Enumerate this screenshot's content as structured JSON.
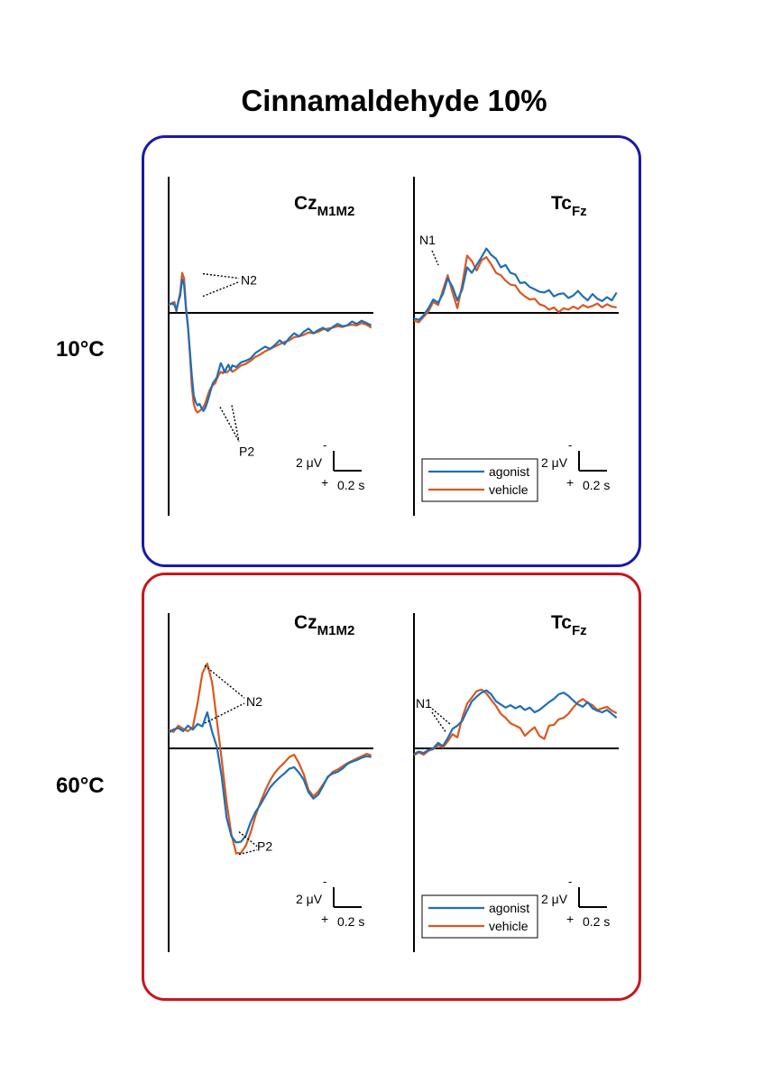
{
  "figure_title": "Cinnamaldehyde 10%",
  "colors": {
    "agonist": "#1f6fb5",
    "vehicle": "#d9581f",
    "cold_frame": "#1a1aa8",
    "hot_frame": "#c8161d"
  },
  "rows": [
    {
      "label": "10°C"
    },
    {
      "label": "60°C"
    }
  ],
  "scale_bar": {
    "amplitude_label": "2 μV",
    "time_label": "0.2 s",
    "neg_sign": "-",
    "pos_sign": "+"
  },
  "legend": {
    "agonist": "agonist",
    "vehicle": "vehicle"
  },
  "chart_data": [
    {
      "type": "line",
      "row": "10°C",
      "channel": "Cz",
      "channel_sub": "M1M2",
      "x_unit": "s",
      "y_unit": "μV (negative up)",
      "annotations": [
        "N2",
        "P2"
      ],
      "series": [
        {
          "name": "agonist",
          "x": [
            0.0,
            0.02,
            0.04,
            0.06,
            0.08,
            0.1,
            0.12,
            0.14,
            0.16,
            0.18,
            0.2,
            0.22,
            0.24,
            0.26,
            0.28,
            0.3,
            0.32,
            0.34,
            0.36,
            0.38,
            0.4,
            0.42,
            0.44,
            0.46,
            0.48,
            0.5,
            0.52,
            0.54,
            0.56,
            0.58,
            0.6,
            0.62,
            0.64,
            0.66,
            0.7,
            0.75,
            0.8,
            0.85,
            0.9,
            0.95,
            1.0,
            1.05,
            1.1,
            1.15,
            1.2,
            1.25,
            1.3,
            1.35,
            1.4,
            1.45,
            1.5,
            1.55,
            1.6,
            1.65,
            1.7,
            1.75,
            1.8,
            1.85,
            1.9,
            1.95,
            2.0,
            2.05,
            2.1
          ],
          "y": [
            -1.2,
            -1.1,
            -1.3,
            -1.0,
            -0.3,
            -1.4,
            -2.2,
            -4.3,
            -3.6,
            -0.4,
            1.8,
            4.8,
            8.0,
            10.5,
            11.4,
            11.8,
            11.6,
            12.1,
            12.5,
            12.1,
            11.4,
            10.6,
            9.7,
            8.9,
            8.6,
            8.2,
            7.3,
            6.4,
            6.9,
            7.6,
            7.0,
            6.6,
            7.3,
            6.7,
            6.9,
            6.3,
            6.1,
            5.8,
            5.1,
            4.7,
            4.3,
            4.6,
            4.1,
            3.5,
            4.0,
            3.2,
            2.6,
            3.0,
            2.4,
            2.0,
            2.6,
            2.2,
            1.9,
            2.3,
            1.8,
            1.4,
            1.7,
            1.6,
            1.1,
            1.4,
            1.0,
            1.3,
            1.6
          ]
        },
        {
          "name": "vehicle",
          "x": [
            0.0,
            0.02,
            0.04,
            0.06,
            0.08,
            0.1,
            0.12,
            0.14,
            0.16,
            0.18,
            0.2,
            0.22,
            0.24,
            0.26,
            0.28,
            0.3,
            0.32,
            0.34,
            0.36,
            0.38,
            0.4,
            0.42,
            0.44,
            0.46,
            0.48,
            0.5,
            0.52,
            0.54,
            0.56,
            0.58,
            0.6,
            0.62,
            0.64,
            0.66,
            0.7,
            0.75,
            0.8,
            0.85,
            0.9,
            0.95,
            1.0,
            1.05,
            1.1,
            1.15,
            1.2,
            1.25,
            1.3,
            1.35,
            1.4,
            1.45,
            1.5,
            1.55,
            1.6,
            1.65,
            1.7,
            1.75,
            1.8,
            1.85,
            1.9,
            1.95,
            2.0,
            2.05,
            2.1
          ],
          "y": [
            -1.0,
            -1.2,
            -1.1,
            -1.4,
            -0.2,
            -1.5,
            -2.6,
            -5.1,
            -4.4,
            -0.7,
            1.6,
            5.2,
            9.4,
            11.6,
            12.4,
            12.7,
            12.5,
            12.3,
            12.0,
            11.5,
            10.7,
            10.0,
            9.5,
            9.2,
            9.0,
            8.4,
            7.9,
            7.5,
            7.7,
            7.3,
            7.6,
            7.4,
            7.1,
            7.5,
            7.2,
            6.7,
            6.5,
            6.1,
            5.6,
            5.3,
            4.9,
            4.6,
            4.3,
            4.0,
            3.7,
            3.5,
            3.1,
            3.0,
            2.8,
            2.5,
            2.6,
            2.4,
            2.1,
            2.0,
            1.9,
            1.7,
            1.8,
            1.6,
            1.5,
            1.6,
            1.3,
            1.5,
            1.9
          ]
        }
      ]
    },
    {
      "type": "line",
      "row": "10°C",
      "channel": "Tc",
      "channel_sub": "Fz",
      "x_unit": "s",
      "y_unit": "μV (negative up)",
      "annotations": [
        "N1"
      ],
      "series": [
        {
          "name": "agonist",
          "x": [
            0.0,
            0.05,
            0.1,
            0.15,
            0.2,
            0.25,
            0.3,
            0.35,
            0.4,
            0.45,
            0.5,
            0.55,
            0.6,
            0.65,
            0.7,
            0.75,
            0.8,
            0.85,
            0.9,
            0.95,
            1.0,
            1.05,
            1.1,
            1.15,
            1.2,
            1.25,
            1.3,
            1.35,
            1.4,
            1.45,
            1.5,
            1.55,
            1.6,
            1.65,
            1.7,
            1.75,
            1.8,
            1.85,
            1.9,
            1.95,
            2.0,
            2.05,
            2.1
          ],
          "y": [
            0.7,
            0.9,
            0.3,
            -0.6,
            -1.7,
            -1.3,
            -2.4,
            -4.4,
            -3.3,
            -1.6,
            -3.0,
            -5.8,
            -5.1,
            -6.1,
            -7.1,
            -8.2,
            -7.4,
            -6.9,
            -5.8,
            -6.1,
            -5.1,
            -4.9,
            -3.8,
            -3.9,
            -3.3,
            -3.0,
            -2.7,
            -2.6,
            -2.9,
            -2.1,
            -2.4,
            -2.5,
            -1.9,
            -2.2,
            -2.8,
            -2.1,
            -1.6,
            -2.4,
            -1.8,
            -1.5,
            -2.0,
            -1.6,
            -2.6
          ]
        },
        {
          "name": "vehicle",
          "x": [
            0.0,
            0.05,
            0.1,
            0.15,
            0.2,
            0.25,
            0.3,
            0.35,
            0.4,
            0.45,
            0.5,
            0.55,
            0.6,
            0.65,
            0.7,
            0.75,
            0.8,
            0.85,
            0.9,
            0.95,
            1.0,
            1.05,
            1.1,
            1.15,
            1.2,
            1.25,
            1.3,
            1.35,
            1.4,
            1.45,
            1.5,
            1.55,
            1.6,
            1.65,
            1.7,
            1.75,
            1.8,
            1.85,
            1.9,
            1.95,
            2.0,
            2.05,
            2.1
          ],
          "y": [
            1.0,
            1.2,
            0.5,
            -0.2,
            -1.4,
            -1.0,
            -2.9,
            -4.8,
            -2.6,
            -0.6,
            -3.6,
            -7.3,
            -6.6,
            -5.4,
            -6.7,
            -7.1,
            -6.2,
            -5.1,
            -4.8,
            -4.1,
            -3.6,
            -3.5,
            -2.6,
            -2.1,
            -1.7,
            -1.8,
            -1.1,
            -0.9,
            -0.4,
            -0.7,
            -0.1,
            -0.6,
            -0.4,
            -0.8,
            -0.5,
            -1.0,
            -0.7,
            -0.9,
            -1.2,
            -0.7,
            -1.1,
            -0.8,
            -0.7
          ]
        }
      ]
    },
    {
      "type": "line",
      "row": "60°C",
      "channel": "Cz",
      "channel_sub": "M1M2",
      "x_unit": "s",
      "y_unit": "μV (negative up)",
      "annotations": [
        "N2",
        "P2"
      ],
      "series": [
        {
          "name": "agonist",
          "x": [
            0.0,
            0.05,
            0.1,
            0.15,
            0.2,
            0.25,
            0.3,
            0.35,
            0.4,
            0.45,
            0.5,
            0.55,
            0.6,
            0.65,
            0.7,
            0.75,
            0.8,
            0.85,
            0.9,
            0.95,
            1.0,
            1.05,
            1.1,
            1.15,
            1.2,
            1.25,
            1.3,
            1.35,
            1.4,
            1.45,
            1.5,
            1.55,
            1.6,
            1.65,
            1.7,
            1.75,
            1.8,
            1.85,
            1.9,
            1.95,
            2.0,
            2.05,
            2.1
          ],
          "y": [
            -2.0,
            -2.4,
            -2.6,
            -2.2,
            -2.9,
            -2.4,
            -3.1,
            -2.8,
            -4.6,
            -2.1,
            -0.2,
            3.6,
            8.8,
            11.2,
            12.0,
            11.9,
            11.1,
            9.4,
            8.1,
            7.2,
            6.1,
            5.0,
            4.3,
            3.7,
            3.2,
            2.6,
            2.4,
            3.1,
            4.0,
            5.6,
            6.4,
            5.9,
            4.8,
            3.6,
            3.2,
            3.0,
            2.6,
            2.0,
            1.7,
            1.5,
            1.2,
            1.0,
            1.1
          ]
        },
        {
          "name": "vehicle",
          "x": [
            0.0,
            0.05,
            0.1,
            0.15,
            0.2,
            0.25,
            0.3,
            0.35,
            0.4,
            0.45,
            0.5,
            0.55,
            0.6,
            0.65,
            0.7,
            0.75,
            0.8,
            0.85,
            0.9,
            0.95,
            1.0,
            1.05,
            1.1,
            1.15,
            1.2,
            1.25,
            1.3,
            1.35,
            1.4,
            1.45,
            1.5,
            1.55,
            1.6,
            1.65,
            1.7,
            1.75,
            1.8,
            1.85,
            1.9,
            1.95,
            2.0,
            2.05,
            2.1
          ],
          "y": [
            -2.4,
            -2.1,
            -2.9,
            -2.5,
            -2.2,
            -2.7,
            -5.8,
            -9.6,
            -10.8,
            -8.4,
            -3.5,
            1.4,
            6.8,
            11.0,
            13.4,
            13.3,
            12.4,
            10.7,
            8.6,
            6.9,
            5.4,
            4.1,
            3.1,
            2.4,
            1.8,
            1.1,
            0.8,
            1.9,
            3.3,
            5.3,
            6.1,
            5.5,
            4.6,
            3.7,
            3.0,
            2.7,
            2.3,
            1.9,
            1.6,
            1.3,
            1.0,
            0.7,
            0.9
          ]
        }
      ]
    },
    {
      "type": "line",
      "row": "60°C",
      "channel": "Tc",
      "channel_sub": "Fz",
      "x_unit": "s",
      "y_unit": "μV (negative up)",
      "annotations": [
        "N1"
      ],
      "series": [
        {
          "name": "agonist",
          "x": [
            0.0,
            0.05,
            0.1,
            0.15,
            0.2,
            0.25,
            0.3,
            0.35,
            0.4,
            0.45,
            0.5,
            0.55,
            0.6,
            0.65,
            0.7,
            0.75,
            0.8,
            0.85,
            0.9,
            0.95,
            1.0,
            1.05,
            1.1,
            1.15,
            1.2,
            1.25,
            1.3,
            1.35,
            1.4,
            1.45,
            1.5,
            1.55,
            1.6,
            1.65,
            1.7,
            1.75,
            1.8,
            1.85,
            1.9,
            1.95,
            2.0,
            2.05,
            2.1
          ],
          "y": [
            0.7,
            0.4,
            0.6,
            0.2,
            0.0,
            -0.7,
            -0.3,
            -1.3,
            -2.5,
            -2.9,
            -3.5,
            -4.8,
            -6.0,
            -6.6,
            -7.1,
            -7.4,
            -6.9,
            -6.0,
            -5.6,
            -5.2,
            -5.5,
            -5.1,
            -5.4,
            -4.9,
            -5.2,
            -4.6,
            -4.9,
            -5.4,
            -5.9,
            -6.3,
            -6.9,
            -7.1,
            -6.7,
            -6.1,
            -5.6,
            -5.3,
            -5.9,
            -5.1,
            -4.8,
            -4.6,
            -4.9,
            -4.4,
            -3.9
          ]
        },
        {
          "name": "vehicle",
          "x": [
            0.0,
            0.05,
            0.1,
            0.15,
            0.2,
            0.25,
            0.3,
            0.35,
            0.4,
            0.45,
            0.5,
            0.55,
            0.6,
            0.65,
            0.7,
            0.75,
            0.8,
            0.85,
            0.9,
            0.95,
            1.0,
            1.05,
            1.1,
            1.15,
            1.2,
            1.25,
            1.3,
            1.35,
            1.4,
            1.45,
            1.5,
            1.55,
            1.6,
            1.65,
            1.7,
            1.75,
            1.8,
            1.85,
            1.9,
            1.95,
            2.0,
            2.05,
            2.1
          ],
          "y": [
            0.9,
            0.5,
            0.8,
            0.3,
            0.1,
            -0.4,
            -0.1,
            -0.9,
            -1.8,
            -1.4,
            -3.9,
            -5.7,
            -6.5,
            -7.3,
            -7.5,
            -7.0,
            -6.2,
            -5.4,
            -4.4,
            -3.9,
            -3.2,
            -2.9,
            -2.6,
            -1.6,
            -2.2,
            -2.7,
            -1.6,
            -1.2,
            -2.9,
            -3.0,
            -3.7,
            -3.9,
            -4.4,
            -5.2,
            -5.9,
            -6.3,
            -5.8,
            -5.5,
            -4.9,
            -5.1,
            -5.3,
            -4.8,
            -4.5
          ]
        }
      ]
    }
  ]
}
